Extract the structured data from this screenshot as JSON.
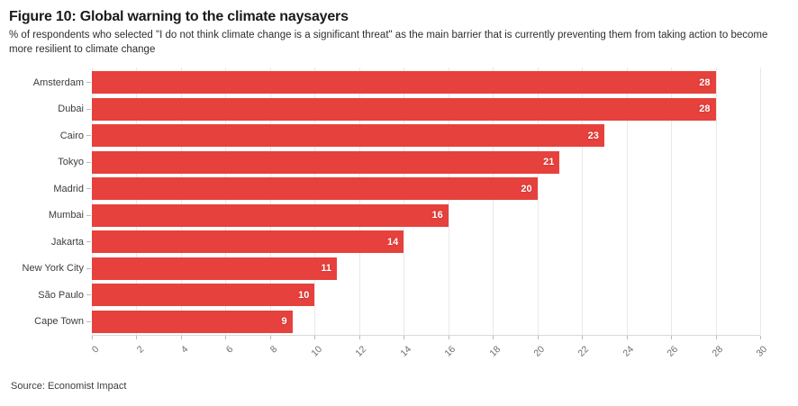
{
  "page": {
    "title": "Figure 10: Global warning to the climate naysayers",
    "subtitle": "% of respondents who selected \"I do not think climate change is a significant threat\" as the main barrier that is currently preventing them from taking action to become more resilient to climate change",
    "source": "Source: Economist Impact"
  },
  "chart_data": {
    "type": "bar",
    "orientation": "horizontal",
    "title": "Figure 10: Global warning to the climate naysayers",
    "subtitle": "% of respondents who selected \"I do not think climate change is a significant threat\" as the main barrier that is currently preventing them from taking action to become more resilient to climate change",
    "categories": [
      "Amsterdam",
      "Dubai",
      "Cairo",
      "Tokyo",
      "Madrid",
      "Mumbai",
      "Jakarta",
      "New York City",
      "São Paulo",
      "Cape Town"
    ],
    "values": [
      28,
      28,
      23,
      21,
      20,
      16,
      14,
      11,
      10,
      9
    ],
    "xlim": [
      0,
      30
    ],
    "xticks": [
      0,
      2,
      4,
      6,
      8,
      10,
      12,
      14,
      16,
      18,
      20,
      22,
      24,
      26,
      28,
      30
    ],
    "grid": "vertical",
    "legend": "none",
    "bar_color": "#e6413c",
    "value_label_color": "#ffffff",
    "gridline_color": "#e9e9e9",
    "tick_label_color": "#6e6e6e",
    "source": "Source: Economist Impact"
  }
}
